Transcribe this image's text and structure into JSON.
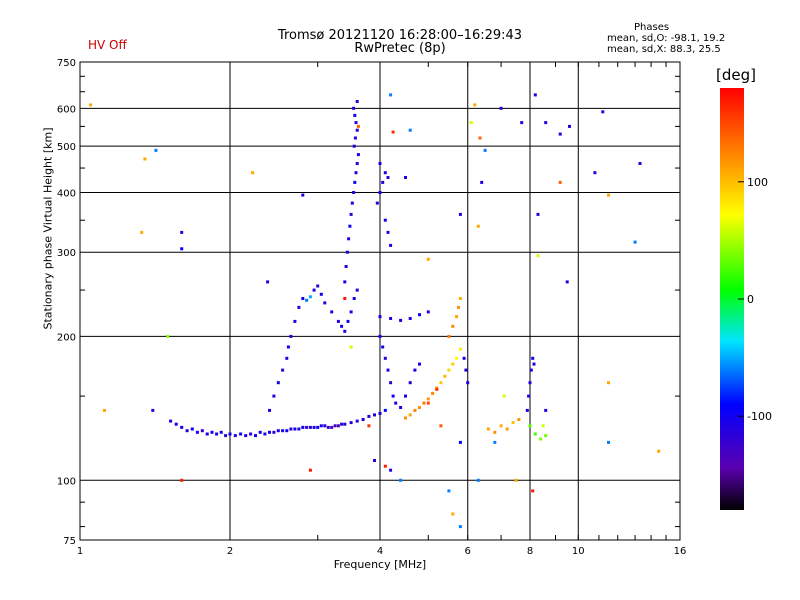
{
  "status_label": "HV Off",
  "title_line1": "Tromsø 20121120 16:28:00–16:29:43",
  "title_line2": "RwPretec (8p)",
  "phase_box": {
    "title": "Phases",
    "line1": "mean, sd,O: -98.1, 19.2",
    "line2": "mean, sd,X:  88.3, 25.5"
  },
  "colorbar": {
    "unit_label": "[deg]",
    "ticks": [
      {
        "value": 100,
        "label": "100"
      },
      {
        "value": 0,
        "label": "0"
      },
      {
        "value": -100,
        "label": "-100"
      }
    ],
    "range": [
      -180,
      180
    ]
  },
  "colors": {
    "status": "#cc0000",
    "grid": "#000000"
  },
  "chart_data": {
    "type": "scatter",
    "xlabel": "Frequency [MHz]",
    "ylabel": "Stationary phase Virtual Height [km]",
    "xscale": "log",
    "yscale": "log",
    "xlim": [
      1,
      16
    ],
    "ylim": [
      75,
      750
    ],
    "grid": true,
    "x_ticks": [
      {
        "value": 1,
        "label": "1"
      },
      {
        "value": 2,
        "label": "2"
      },
      {
        "value": 4,
        "label": "4"
      },
      {
        "value": 6,
        "label": "6"
      },
      {
        "value": 8,
        "label": "8"
      },
      {
        "value": 10,
        "label": "10"
      },
      {
        "value": 16,
        "label": "16"
      }
    ],
    "y_ticks": [
      {
        "value": 75,
        "label": "75"
      },
      {
        "value": 100,
        "label": "100"
      },
      {
        "value": 200,
        "label": "200"
      },
      {
        "value": 300,
        "label": "300"
      },
      {
        "value": 400,
        "label": "400"
      },
      {
        "value": 500,
        "label": "500"
      },
      {
        "value": 600,
        "label": "600"
      },
      {
        "value": 750,
        "label": "750"
      }
    ],
    "series": [
      {
        "color_by": "phase_deg",
        "points": [
          [
            1.52,
            133,
            -110
          ],
          [
            1.56,
            131,
            -105
          ],
          [
            1.6,
            129,
            -100
          ],
          [
            1.64,
            127,
            -115
          ],
          [
            1.68,
            128,
            -95
          ],
          [
            1.72,
            126,
            -108
          ],
          [
            1.76,
            127,
            -120
          ],
          [
            1.8,
            125,
            -102
          ],
          [
            1.84,
            126,
            -98
          ],
          [
            1.88,
            125,
            -112
          ],
          [
            1.92,
            126,
            -105
          ],
          [
            1.96,
            124,
            -118
          ],
          [
            2.0,
            125,
            -100
          ],
          [
            2.05,
            124,
            -110
          ],
          [
            2.1,
            125,
            -96
          ],
          [
            2.15,
            124,
            -108
          ],
          [
            2.2,
            125,
            -115
          ],
          [
            2.25,
            124,
            -102
          ],
          [
            2.3,
            126,
            -100
          ],
          [
            2.35,
            125,
            -112
          ],
          [
            2.4,
            126,
            -98
          ],
          [
            2.45,
            126,
            -120
          ],
          [
            2.5,
            127,
            -104
          ],
          [
            2.55,
            127,
            -110
          ],
          [
            2.6,
            127,
            -96
          ],
          [
            2.65,
            128,
            -114
          ],
          [
            2.7,
            128,
            -102
          ],
          [
            2.75,
            128,
            -108
          ],
          [
            2.8,
            129,
            -100
          ],
          [
            2.85,
            129,
            -118
          ],
          [
            2.9,
            129,
            -106
          ],
          [
            2.95,
            129,
            -112
          ],
          [
            3.0,
            129,
            -98
          ],
          [
            3.05,
            130,
            -110
          ],
          [
            3.1,
            130,
            -104
          ],
          [
            3.15,
            129,
            -130
          ],
          [
            3.2,
            129,
            -140
          ],
          [
            3.25,
            130,
            -125
          ],
          [
            3.3,
            130,
            -135
          ],
          [
            3.35,
            131,
            -120
          ],
          [
            3.4,
            131,
            -110
          ],
          [
            3.5,
            132,
            -105
          ],
          [
            3.6,
            133,
            -115
          ],
          [
            3.7,
            134,
            -102
          ],
          [
            3.8,
            136,
            -108
          ],
          [
            3.9,
            137,
            -112
          ],
          [
            4.0,
            138,
            -100
          ],
          [
            4.1,
            140,
            -95
          ],
          [
            2.4,
            140,
            -105
          ],
          [
            2.45,
            150,
            -110
          ],
          [
            2.5,
            160,
            -100
          ],
          [
            2.55,
            170,
            -115
          ],
          [
            2.6,
            180,
            -108
          ],
          [
            2.62,
            190,
            -98
          ],
          [
            2.65,
            200,
            -112
          ],
          [
            2.7,
            215,
            -104
          ],
          [
            2.75,
            230,
            -110
          ],
          [
            2.8,
            240,
            -100
          ],
          [
            2.85,
            238,
            -60
          ],
          [
            2.9,
            242,
            -50
          ],
          [
            2.95,
            250,
            -108
          ],
          [
            3.0,
            255,
            -112
          ],
          [
            3.05,
            245,
            -100
          ],
          [
            3.1,
            235,
            -115
          ],
          [
            3.2,
            225,
            -105
          ],
          [
            3.3,
            215,
            -110
          ],
          [
            3.35,
            210,
            -98
          ],
          [
            3.4,
            205,
            -112
          ],
          [
            3.45,
            215,
            -104
          ],
          [
            3.5,
            225,
            -110
          ],
          [
            3.55,
            240,
            -100
          ],
          [
            3.6,
            250,
            -108
          ],
          [
            3.4,
            260,
            -105
          ],
          [
            3.42,
            280,
            -112
          ],
          [
            3.44,
            300,
            -100
          ],
          [
            3.46,
            320,
            -110
          ],
          [
            3.48,
            340,
            -98
          ],
          [
            3.5,
            360,
            -115
          ],
          [
            3.52,
            380,
            -104
          ],
          [
            3.54,
            400,
            -110
          ],
          [
            3.56,
            420,
            -100
          ],
          [
            3.58,
            440,
            -108
          ],
          [
            3.6,
            460,
            -112
          ],
          [
            3.62,
            480,
            -100
          ],
          [
            3.55,
            500,
            -105
          ],
          [
            3.57,
            520,
            -115
          ],
          [
            3.6,
            540,
            -102
          ],
          [
            3.58,
            560,
            -110
          ],
          [
            3.56,
            580,
            -98
          ],
          [
            3.54,
            600,
            -108
          ],
          [
            3.6,
            620,
            -112
          ],
          [
            3.62,
            550,
            140
          ],
          [
            3.4,
            240,
            170
          ],
          [
            3.5,
            190,
            60
          ],
          [
            4.0,
            200,
            -110
          ],
          [
            4.05,
            190,
            -100
          ],
          [
            4.1,
            180,
            -112
          ],
          [
            4.15,
            170,
            -105
          ],
          [
            4.2,
            160,
            -115
          ],
          [
            4.25,
            150,
            -98
          ],
          [
            4.3,
            145,
            -108
          ],
          [
            4.4,
            142,
            -110
          ],
          [
            4.5,
            150,
            -100
          ],
          [
            4.6,
            160,
            -112
          ],
          [
            4.7,
            170,
            -104
          ],
          [
            4.8,
            175,
            -110
          ],
          [
            4.0,
            220,
            -105
          ],
          [
            4.2,
            218,
            -112
          ],
          [
            4.4,
            216,
            -100
          ],
          [
            4.6,
            218,
            -110
          ],
          [
            4.8,
            222,
            -98
          ],
          [
            5.0,
            225,
            -108
          ],
          [
            3.95,
            380,
            -112
          ],
          [
            4.0,
            400,
            -100
          ],
          [
            4.05,
            420,
            -110
          ],
          [
            4.1,
            440,
            -104
          ],
          [
            4.15,
            430,
            -115
          ],
          [
            4.0,
            460,
            -105
          ],
          [
            4.1,
            350,
            -100
          ],
          [
            4.15,
            330,
            -112
          ],
          [
            4.2,
            310,
            -108
          ],
          [
            4.5,
            135,
            120
          ],
          [
            4.6,
            137,
            110
          ],
          [
            4.7,
            140,
            125
          ],
          [
            4.8,
            142,
            118
          ],
          [
            4.9,
            145,
            130
          ],
          [
            5.0,
            148,
            115
          ],
          [
            5.1,
            152,
            122
          ],
          [
            5.2,
            156,
            110
          ],
          [
            5.3,
            160,
            95
          ],
          [
            5.4,
            165,
            100
          ],
          [
            5.5,
            170,
            88
          ],
          [
            5.6,
            175,
            92
          ],
          [
            5.7,
            180,
            70
          ],
          [
            5.8,
            188,
            80
          ],
          [
            5.5,
            200,
            130
          ],
          [
            5.6,
            210,
            125
          ],
          [
            5.7,
            220,
            110
          ],
          [
            5.75,
            230,
            118
          ],
          [
            5.8,
            240,
            105
          ],
          [
            5.2,
            155,
            160
          ],
          [
            5.0,
            145,
            150
          ],
          [
            6.6,
            128,
            110
          ],
          [
            6.8,
            126,
            120
          ],
          [
            7.0,
            130,
            105
          ],
          [
            7.2,
            128,
            115
          ],
          [
            7.4,
            132,
            100
          ],
          [
            7.6,
            134,
            118
          ],
          [
            8.0,
            130,
            30
          ],
          [
            8.2,
            125,
            25
          ],
          [
            8.4,
            122,
            40
          ],
          [
            8.6,
            124,
            35
          ],
          [
            7.9,
            140,
            -100
          ],
          [
            7.95,
            150,
            -110
          ],
          [
            8.0,
            160,
            -105
          ],
          [
            8.05,
            170,
            -112
          ],
          [
            8.1,
            180,
            -98
          ],
          [
            8.15,
            175,
            -108
          ],
          [
            5.9,
            180,
            -100
          ],
          [
            5.95,
            170,
            -110
          ],
          [
            6.0,
            160,
            -105
          ],
          [
            5.8,
            120,
            -90
          ],
          [
            1.05,
            610,
            110
          ],
          [
            1.12,
            140,
            110
          ],
          [
            1.33,
            330,
            110
          ],
          [
            1.35,
            470,
            110
          ],
          [
            1.42,
            490,
            -60
          ],
          [
            1.4,
            140,
            -110
          ],
          [
            1.6,
            330,
            -110
          ],
          [
            1.6,
            305,
            -90
          ],
          [
            1.6,
            100,
            170
          ],
          [
            1.5,
            200,
            40
          ],
          [
            2.22,
            440,
            110
          ],
          [
            2.38,
            260,
            -110
          ],
          [
            2.8,
            395,
            -110
          ],
          [
            4.2,
            640,
            -60
          ],
          [
            4.6,
            540,
            -60
          ],
          [
            4.25,
            535,
            160
          ],
          [
            4.5,
            430,
            -110
          ],
          [
            5.0,
            290,
            110
          ],
          [
            6.1,
            560,
            60
          ],
          [
            6.2,
            610,
            110
          ],
          [
            6.35,
            520,
            140
          ],
          [
            6.5,
            490,
            -60
          ],
          [
            7.0,
            600,
            -110
          ],
          [
            7.7,
            560,
            -110
          ],
          [
            8.2,
            640,
            -110
          ],
          [
            8.3,
            360,
            -110
          ],
          [
            8.3,
            295,
            60
          ],
          [
            8.6,
            560,
            -110
          ],
          [
            9.2,
            530,
            -110
          ],
          [
            9.2,
            420,
            140
          ],
          [
            9.6,
            550,
            -110
          ],
          [
            10.8,
            440,
            -110
          ],
          [
            11.2,
            590,
            -110
          ],
          [
            11.5,
            395,
            110
          ],
          [
            13.3,
            460,
            -110
          ],
          [
            13.0,
            315,
            -60
          ],
          [
            14.5,
            115,
            110
          ],
          [
            11.5,
            160,
            110
          ],
          [
            11.5,
            120,
            -60
          ],
          [
            9.5,
            260,
            -110
          ],
          [
            6.4,
            420,
            -110
          ],
          [
            6.3,
            340,
            110
          ],
          [
            5.8,
            360,
            -110
          ],
          [
            5.5,
            95,
            -60
          ],
          [
            5.6,
            85,
            110
          ],
          [
            5.8,
            80,
            -60
          ],
          [
            6.3,
            100,
            -60
          ],
          [
            7.5,
            100,
            110
          ],
          [
            8.1,
            95,
            170
          ],
          [
            6.8,
            120,
            -60
          ],
          [
            8.5,
            130,
            60
          ],
          [
            8.6,
            140,
            -110
          ],
          [
            7.1,
            150,
            60
          ],
          [
            5.3,
            130,
            140
          ],
          [
            3.8,
            130,
            160
          ],
          [
            3.9,
            110,
            -110
          ],
          [
            4.1,
            107,
            170
          ],
          [
            4.2,
            105,
            -110
          ],
          [
            4.4,
            100,
            -60
          ],
          [
            2.9,
            105,
            170
          ]
        ]
      }
    ]
  }
}
